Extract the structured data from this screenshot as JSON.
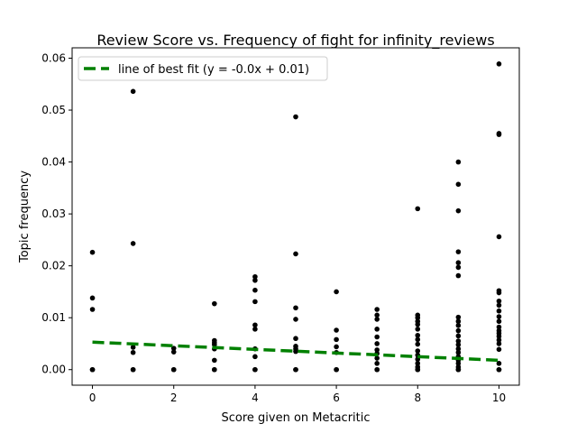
{
  "chart_data": {
    "type": "scatter",
    "title": "Review Score vs. Frequency of fight for infinity_reviews",
    "xlabel": "Score given on Metacritic",
    "ylabel": "Topic frequency",
    "xlim": [
      -0.5,
      10.5
    ],
    "ylim": [
      -0.003,
      0.062
    ],
    "xticks": [
      "0",
      "2",
      "4",
      "6",
      "8",
      "10"
    ],
    "yticks": [
      "0.00",
      "0.01",
      "0.02",
      "0.03",
      "0.04",
      "0.05",
      "0.06"
    ],
    "grid": false,
    "legend_position": "top-left",
    "point_color": "#000000",
    "fit_color": "#008000",
    "series": [
      {
        "points": [
          [
            0,
            0
          ],
          [
            0,
            0
          ],
          [
            0,
            0.0116
          ],
          [
            0,
            0.0138
          ],
          [
            0,
            0.0226
          ],
          [
            1,
            0
          ],
          [
            1,
            0
          ],
          [
            1,
            0.0033
          ],
          [
            1,
            0.0043
          ],
          [
            1,
            0.0243
          ],
          [
            1,
            0.0536
          ],
          [
            2,
            0
          ],
          [
            2,
            0
          ],
          [
            2,
            0.0034
          ],
          [
            2,
            0.0041
          ],
          [
            3,
            0
          ],
          [
            3,
            0
          ],
          [
            3,
            0.0018
          ],
          [
            3,
            0.004
          ],
          [
            3,
            0.0048
          ],
          [
            3,
            0.0052
          ],
          [
            3,
            0.0056
          ],
          [
            3,
            0.0127
          ],
          [
            4,
            0
          ],
          [
            4,
            0
          ],
          [
            4,
            0.0025
          ],
          [
            4,
            0.004
          ],
          [
            4,
            0.0078
          ],
          [
            4,
            0.0086
          ],
          [
            4,
            0.0131
          ],
          [
            4,
            0.0153
          ],
          [
            4,
            0.0172
          ],
          [
            4,
            0.0179
          ],
          [
            5,
            0
          ],
          [
            5,
            0
          ],
          [
            5,
            0.0035
          ],
          [
            5,
            0.004
          ],
          [
            5,
            0.0045
          ],
          [
            5,
            0.006
          ],
          [
            5,
            0.0097
          ],
          [
            5,
            0.0119
          ],
          [
            5,
            0.0223
          ],
          [
            5,
            0.0487
          ],
          [
            6,
            0
          ],
          [
            6,
            0
          ],
          [
            6,
            0.0033
          ],
          [
            6,
            0.0044
          ],
          [
            6,
            0.0058
          ],
          [
            6,
            0.0076
          ],
          [
            6,
            0.015
          ],
          [
            7,
            0
          ],
          [
            7,
            0
          ],
          [
            7,
            0.0012
          ],
          [
            7,
            0.0022
          ],
          [
            7,
            0.0031
          ],
          [
            7,
            0.0038
          ],
          [
            7,
            0.005
          ],
          [
            7,
            0.0063
          ],
          [
            7,
            0.0078
          ],
          [
            7,
            0.0097
          ],
          [
            7,
            0.0105
          ],
          [
            7,
            0.0116
          ],
          [
            8,
            0
          ],
          [
            8,
            0
          ],
          [
            8,
            0.0005
          ],
          [
            8,
            0.0012
          ],
          [
            8,
            0.002
          ],
          [
            8,
            0.0028
          ],
          [
            8,
            0.0036
          ],
          [
            8,
            0.0049
          ],
          [
            8,
            0.0058
          ],
          [
            8,
            0.0066
          ],
          [
            8,
            0.0078
          ],
          [
            8,
            0.0087
          ],
          [
            8,
            0.0093
          ],
          [
            8,
            0.01
          ],
          [
            8,
            0.0105
          ],
          [
            8,
            0.031
          ],
          [
            9,
            0
          ],
          [
            9,
            0
          ],
          [
            9,
            0.0005
          ],
          [
            9,
            0.0012
          ],
          [
            9,
            0.0018
          ],
          [
            9,
            0.0025
          ],
          [
            9,
            0.0033
          ],
          [
            9,
            0.004
          ],
          [
            9,
            0.0048
          ],
          [
            9,
            0.0055
          ],
          [
            9,
            0.0065
          ],
          [
            9,
            0.0075
          ],
          [
            9,
            0.0085
          ],
          [
            9,
            0.0093
          ],
          [
            9,
            0.0101
          ],
          [
            9,
            0.0181
          ],
          [
            9,
            0.0197
          ],
          [
            9,
            0.0206
          ],
          [
            9,
            0.0227
          ],
          [
            9,
            0.0306
          ],
          [
            9,
            0.0357
          ],
          [
            9,
            0.04
          ],
          [
            10,
            0
          ],
          [
            10,
            0
          ],
          [
            10,
            0.0012
          ],
          [
            10,
            0.0039
          ],
          [
            10,
            0.005
          ],
          [
            10,
            0.0057
          ],
          [
            10,
            0.0064
          ],
          [
            10,
            0.007
          ],
          [
            10,
            0.0075
          ],
          [
            10,
            0.0082
          ],
          [
            10,
            0.0093
          ],
          [
            10,
            0.0102
          ],
          [
            10,
            0.0113
          ],
          [
            10,
            0.0124
          ],
          [
            10,
            0.0132
          ],
          [
            10,
            0.0148
          ],
          [
            10,
            0.0152
          ],
          [
            10,
            0.0256
          ],
          [
            10,
            0.0453
          ],
          [
            10,
            0.0455
          ],
          [
            10,
            0.0589
          ]
        ]
      }
    ],
    "fit_line": {
      "label": "line of best fit (y = -0.0x + 0.01)",
      "x": [
        0,
        10
      ],
      "y": [
        0.0053,
        0.0018
      ]
    }
  }
}
